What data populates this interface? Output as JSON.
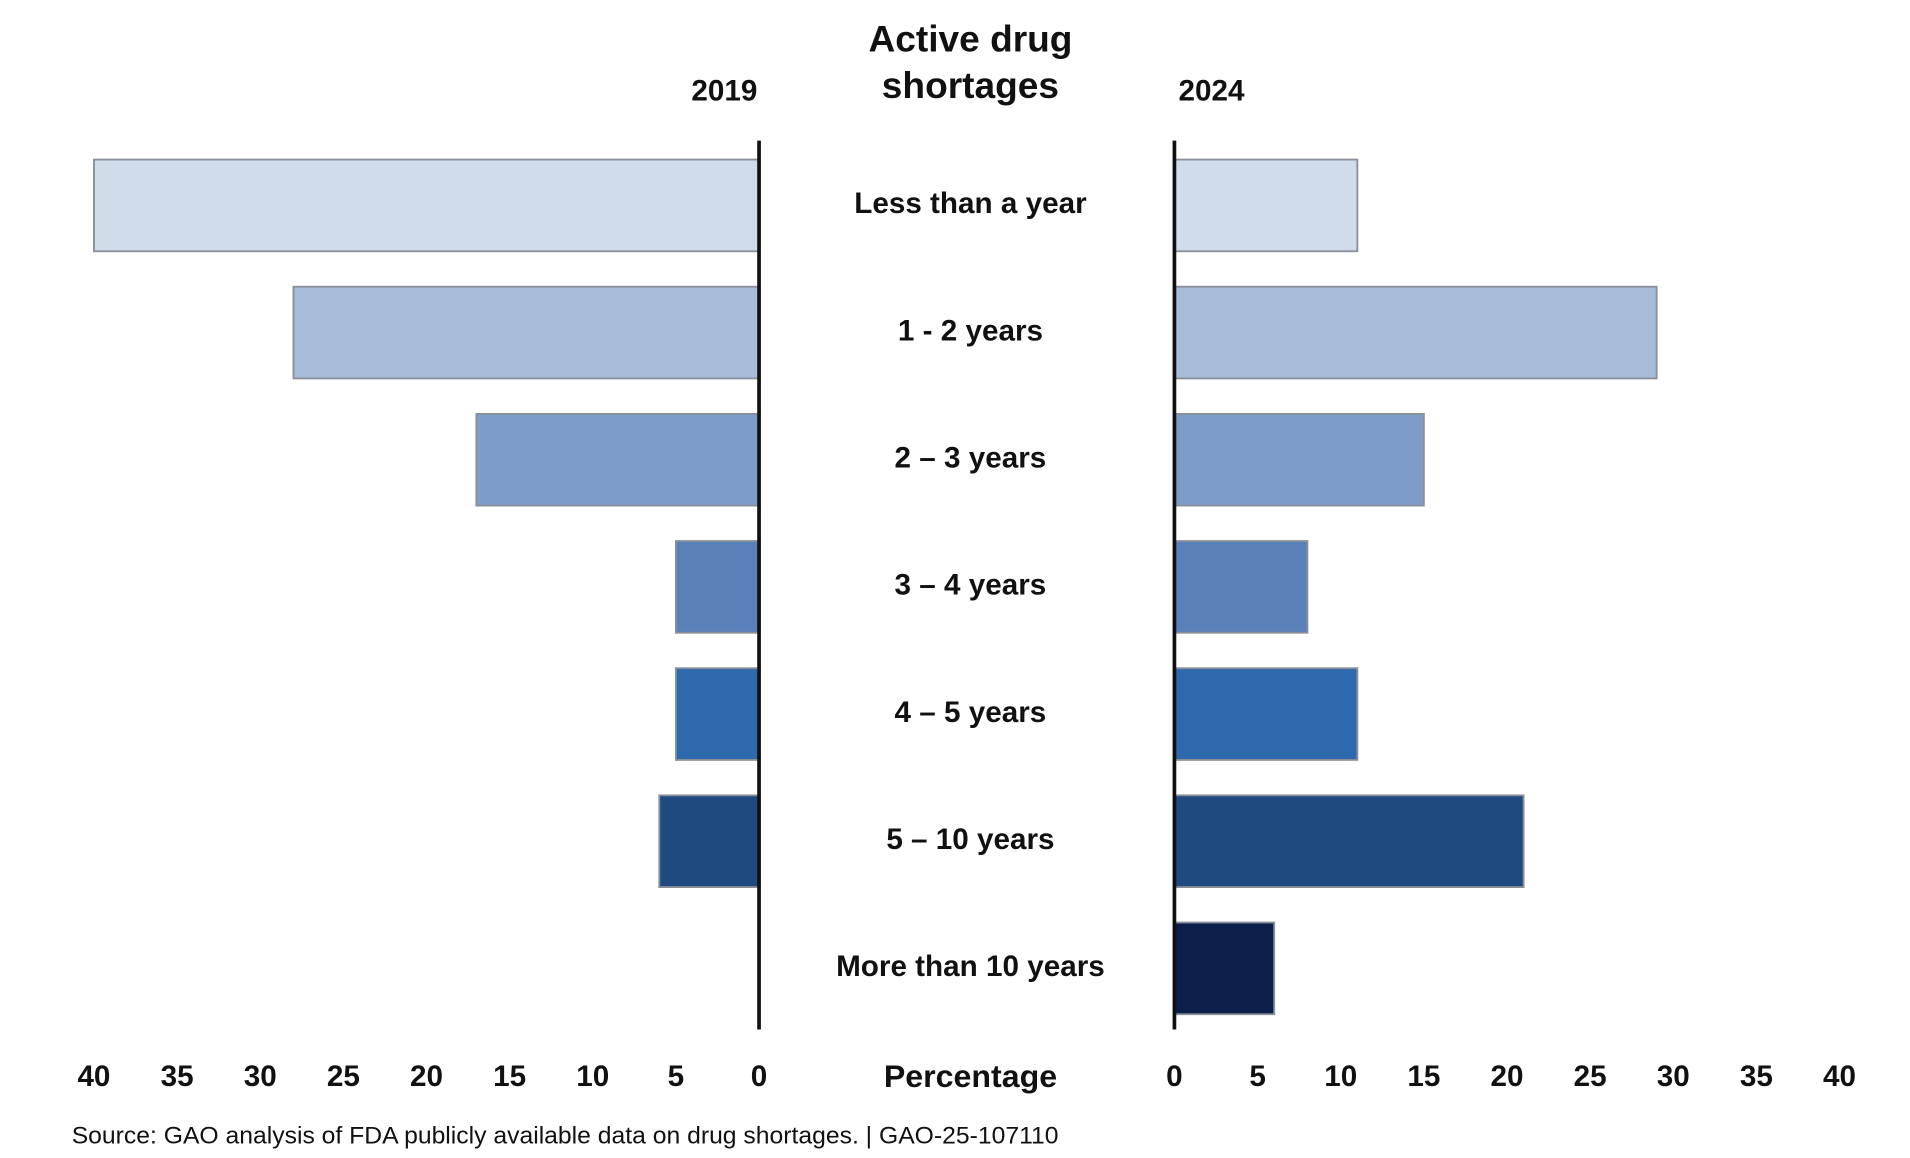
{
  "chart_data": {
    "type": "butterfly_bar",
    "title": "Active drug shortages",
    "xlabel": "Percentage",
    "source": "Source: GAO analysis of FDA publicly available data on drug shortages.  |  GAO-25-107110",
    "categories": [
      "Less than a year",
      "1 - 2 years",
      "2 – 3 years",
      "3 – 4 years",
      "4 – 5 years",
      "5 – 10 years",
      "More than 10 years"
    ],
    "colors": [
      "#d0dcea",
      "#a7bcd9",
      "#7d9dc8",
      "#5a80b9",
      "#2f69ad",
      "#1f4a80",
      "#0c1f4b"
    ],
    "series": [
      {
        "name": "2019",
        "values": [
          40,
          28,
          17,
          5,
          5,
          6,
          0
        ]
      },
      {
        "name": "2024",
        "values": [
          11,
          29,
          15,
          8,
          11,
          21,
          6
        ]
      }
    ],
    "xlim": [
      0,
      40
    ],
    "xticks": [
      0,
      5,
      10,
      15,
      20,
      25,
      30,
      35,
      40
    ]
  }
}
